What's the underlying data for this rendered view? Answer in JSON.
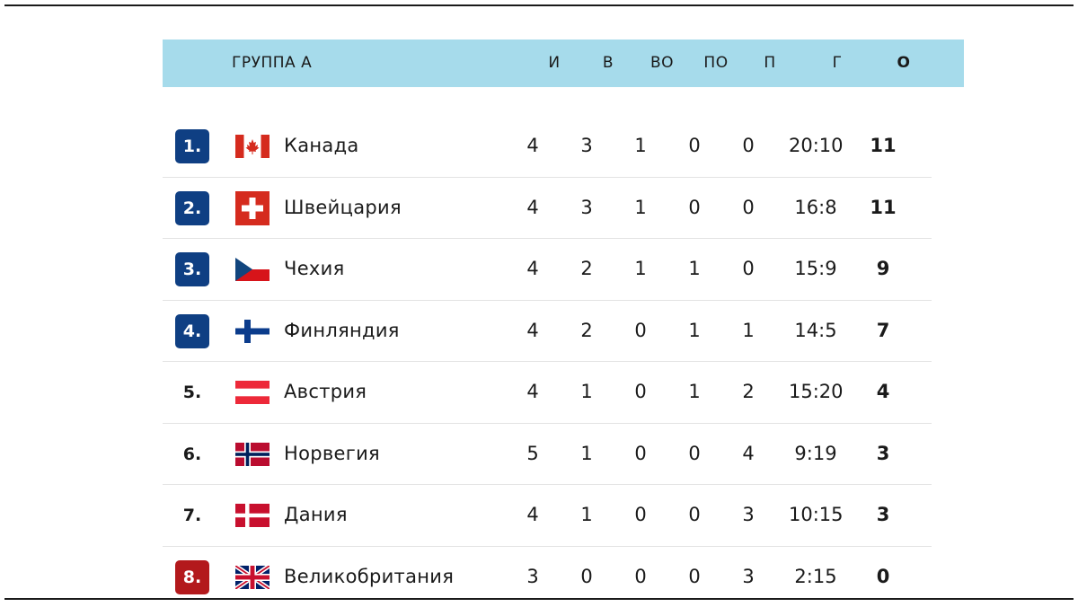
{
  "group": {
    "title": "ГРУППА А",
    "columns": [
      "И",
      "В",
      "ВО",
      "ПО",
      "П",
      "Г",
      "О"
    ]
  },
  "colors": {
    "header_bg": "#a6dbeb",
    "qualified_badge": "#0f3f83",
    "relegation_badge": "#b3191c"
  },
  "teams": [
    {
      "rank": "1.",
      "zone": "q",
      "flag": "canada-flag-icon",
      "name": "Канада",
      "gp": "4",
      "w": "3",
      "otw": "1",
      "otl": "0",
      "l": "0",
      "goals": "20:10",
      "pts": "11"
    },
    {
      "rank": "2.",
      "zone": "q",
      "flag": "switzerland-flag-icon",
      "name": "Швейцария",
      "gp": "4",
      "w": "3",
      "otw": "1",
      "otl": "0",
      "l": "0",
      "goals": "16:8",
      "pts": "11"
    },
    {
      "rank": "3.",
      "zone": "q",
      "flag": "czechia-flag-icon",
      "name": "Чехия",
      "gp": "4",
      "w": "2",
      "otw": "1",
      "otl": "1",
      "l": "0",
      "goals": "15:9",
      "pts": "9"
    },
    {
      "rank": "4.",
      "zone": "q",
      "flag": "finland-flag-icon",
      "name": "Финляндия",
      "gp": "4",
      "w": "2",
      "otw": "0",
      "otl": "1",
      "l": "1",
      "goals": "14:5",
      "pts": "7"
    },
    {
      "rank": "5.",
      "zone": "",
      "flag": "austria-flag-icon",
      "name": "Австрия",
      "gp": "4",
      "w": "1",
      "otw": "0",
      "otl": "1",
      "l": "2",
      "goals": "15:20",
      "pts": "4"
    },
    {
      "rank": "6.",
      "zone": "",
      "flag": "norway-flag-icon",
      "name": "Норвегия",
      "gp": "5",
      "w": "1",
      "otw": "0",
      "otl": "0",
      "l": "4",
      "goals": "9:19",
      "pts": "3"
    },
    {
      "rank": "7.",
      "zone": "",
      "flag": "denmark-flag-icon",
      "name": "Дания",
      "gp": "4",
      "w": "1",
      "otw": "0",
      "otl": "0",
      "l": "3",
      "goals": "10:15",
      "pts": "3"
    },
    {
      "rank": "8.",
      "zone": "r",
      "flag": "great-britain-flag-icon",
      "name": "Великобритания",
      "gp": "3",
      "w": "0",
      "otw": "0",
      "otl": "0",
      "l": "3",
      "goals": "2:15",
      "pts": "0"
    }
  ]
}
